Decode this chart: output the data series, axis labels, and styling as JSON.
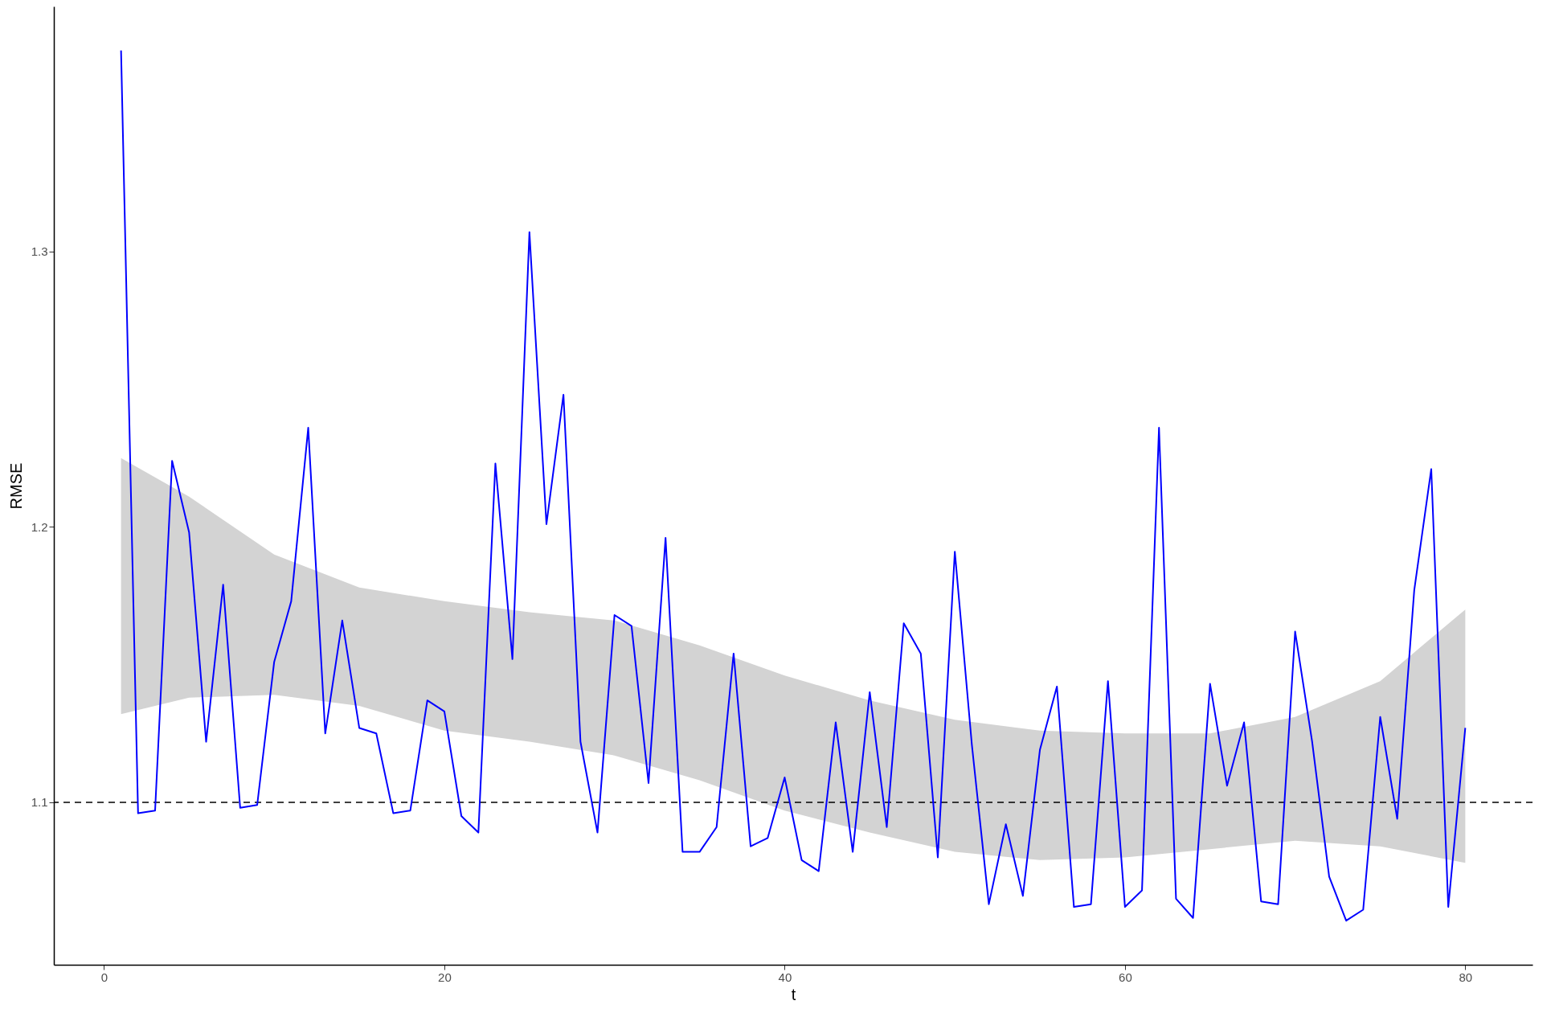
{
  "chart_data": {
    "type": "line",
    "xlabel": "t",
    "ylabel": "RMSE",
    "xlim": [
      -2.95,
      83.95
    ],
    "ylim": [
      1.041,
      1.389
    ],
    "xticks": [
      0,
      20,
      40,
      60,
      80
    ],
    "yticks": [
      1.1,
      1.2,
      1.3
    ],
    "series": [
      {
        "type": "area",
        "color": "#d3d3d3",
        "x": [
          1,
          5,
          10,
          15,
          20,
          25,
          30,
          35,
          40,
          45,
          50,
          55,
          60,
          65,
          70,
          75,
          80
        ],
        "values": [
          null,
          null,
          null,
          null,
          null,
          null,
          null,
          null,
          null,
          null,
          null,
          null,
          null,
          null,
          null,
          null,
          null
        ],
        "lower": [
          1.132,
          1.138,
          1.139,
          1.135,
          1.126,
          1.122,
          1.117,
          1.108,
          1.097,
          1.089,
          1.082,
          1.079,
          1.08,
          1.083,
          1.086,
          1.084,
          1.078
        ],
        "upper": [
          1.225,
          1.211,
          1.19,
          1.178,
          1.173,
          1.169,
          1.166,
          1.157,
          1.146,
          1.137,
          1.13,
          1.126,
          1.125,
          1.125,
          1.131,
          1.144,
          1.17
        ]
      },
      {
        "color": "#0000ff",
        "x": [
          1,
          2,
          3,
          4,
          5,
          6,
          7,
          8,
          9,
          10,
          11,
          12,
          13,
          14,
          15,
          16,
          17,
          18,
          19,
          20,
          21,
          22,
          23,
          24,
          25,
          26,
          27,
          28,
          29,
          30,
          31,
          32,
          33,
          34,
          35,
          36,
          37,
          38,
          39,
          40,
          41,
          42,
          43,
          44,
          45,
          46,
          47,
          48,
          49,
          50,
          51,
          52,
          53,
          54,
          55,
          56,
          57,
          58,
          59,
          60,
          61,
          62,
          63,
          64,
          65,
          66,
          67,
          68,
          69,
          70,
          71,
          72,
          73,
          74,
          75,
          76,
          77,
          78,
          79,
          80
        ],
        "values": [
          1.373,
          1.096,
          1.097,
          1.224,
          1.198,
          1.122,
          1.179,
          1.098,
          1.099,
          1.151,
          1.173,
          1.236,
          1.125,
          1.166,
          1.127,
          1.125,
          1.096,
          1.097,
          1.137,
          1.133,
          1.095,
          1.089,
          1.223,
          1.152,
          1.307,
          1.201,
          1.248,
          1.122,
          1.089,
          1.168,
          1.164,
          1.107,
          1.196,
          1.082,
          1.082,
          1.091,
          1.154,
          1.084,
          1.087,
          1.109,
          1.079,
          1.075,
          1.129,
          1.082,
          1.14,
          1.091,
          1.165,
          1.154,
          1.08,
          1.191,
          1.121,
          1.063,
          1.092,
          1.066,
          1.119,
          1.142,
          1.062,
          1.063,
          1.144,
          1.062,
          1.068,
          1.236,
          1.065,
          1.058,
          1.143,
          1.106,
          1.129,
          1.064,
          1.063,
          1.162,
          1.122,
          1.073,
          1.057,
          1.061,
          1.131,
          1.094,
          1.177,
          1.221,
          1.062,
          1.127
        ]
      }
    ],
    "ref_lines": [
      {
        "axis": "y",
        "value": 1.1,
        "color": "#000000",
        "line_style": "dashed"
      }
    ]
  }
}
